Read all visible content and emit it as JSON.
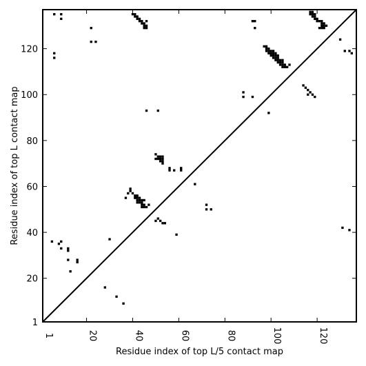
{
  "chart_data": {
    "type": "scatter",
    "title": "",
    "xlabel": "Residue index of top L/5 contact map",
    "ylabel": "Residue index of top L contact map",
    "xlim": [
      1,
      137
    ],
    "ylim": [
      1,
      137
    ],
    "xticks": [
      1,
      20,
      40,
      60,
      80,
      100,
      120
    ],
    "yticks": [
      1,
      20,
      40,
      60,
      80,
      100,
      120
    ],
    "xtick_labels": [
      "1",
      "20",
      "40",
      "60",
      "80",
      "100",
      "120"
    ],
    "ytick_labels": [
      "1",
      "20",
      "40",
      "60",
      "80",
      "100",
      "120"
    ],
    "grid": false,
    "marker_color": "#000000",
    "diagonal": {
      "from": [
        1,
        1
      ],
      "to": [
        137,
        137
      ]
    },
    "points": [
      [
        6,
        135
      ],
      [
        9,
        135
      ],
      [
        9,
        133
      ],
      [
        22,
        129
      ],
      [
        22,
        123
      ],
      [
        24,
        123
      ],
      [
        6,
        118
      ],
      [
        6,
        116
      ],
      [
        40,
        135
      ],
      [
        41,
        135
      ],
      [
        41,
        134
      ],
      [
        42,
        134
      ],
      [
        42,
        133
      ],
      [
        43,
        133
      ],
      [
        43,
        132
      ],
      [
        44,
        132
      ],
      [
        44,
        131
      ],
      [
        45,
        131
      ],
      [
        45,
        130
      ],
      [
        45,
        129
      ],
      [
        46,
        129
      ],
      [
        46,
        130
      ],
      [
        46,
        132
      ],
      [
        92,
        132
      ],
      [
        93,
        132
      ],
      [
        93,
        129
      ],
      [
        117,
        136
      ],
      [
        118,
        136
      ],
      [
        117,
        135
      ],
      [
        118,
        135
      ],
      [
        119,
        135
      ],
      [
        118,
        134
      ],
      [
        119,
        134
      ],
      [
        119,
        133
      ],
      [
        120,
        133
      ],
      [
        120,
        132
      ],
      [
        121,
        132
      ],
      [
        122,
        132
      ],
      [
        122,
        131
      ],
      [
        123,
        131
      ],
      [
        122,
        130
      ],
      [
        123,
        130
      ],
      [
        124,
        130
      ],
      [
        121,
        129
      ],
      [
        122,
        129
      ],
      [
        123,
        129
      ],
      [
        130,
        124
      ],
      [
        132,
        119
      ],
      [
        134,
        119
      ],
      [
        135,
        118
      ],
      [
        97,
        121
      ],
      [
        98,
        121
      ],
      [
        98,
        120
      ],
      [
        99,
        120
      ],
      [
        98,
        119
      ],
      [
        99,
        119
      ],
      [
        100,
        119
      ],
      [
        101,
        119
      ],
      [
        99,
        118
      ],
      [
        100,
        118
      ],
      [
        101,
        118
      ],
      [
        102,
        118
      ],
      [
        100,
        117
      ],
      [
        101,
        117
      ],
      [
        102,
        117
      ],
      [
        103,
        117
      ],
      [
        101,
        116
      ],
      [
        102,
        116
      ],
      [
        103,
        116
      ],
      [
        102,
        115
      ],
      [
        103,
        115
      ],
      [
        104,
        115
      ],
      [
        103,
        114
      ],
      [
        104,
        114
      ],
      [
        105,
        115
      ],
      [
        105,
        114
      ],
      [
        104,
        113
      ],
      [
        105,
        113
      ],
      [
        106,
        113
      ],
      [
        105,
        112
      ],
      [
        106,
        112
      ],
      [
        107,
        112
      ],
      [
        108,
        113
      ],
      [
        114,
        104
      ],
      [
        115,
        103
      ],
      [
        116,
        102
      ],
      [
        117,
        101
      ],
      [
        116,
        100
      ],
      [
        118,
        100
      ],
      [
        119,
        99
      ],
      [
        88,
        101
      ],
      [
        88,
        99
      ],
      [
        92,
        99
      ],
      [
        99,
        92
      ],
      [
        46,
        93
      ],
      [
        51,
        93
      ],
      [
        5,
        36
      ],
      [
        8,
        35
      ],
      [
        9,
        36
      ],
      [
        9,
        33
      ],
      [
        12,
        33
      ],
      [
        12,
        32
      ],
      [
        12,
        28
      ],
      [
        16,
        28
      ],
      [
        16,
        27
      ],
      [
        13,
        23
      ],
      [
        30,
        37
      ],
      [
        28,
        16
      ],
      [
        33,
        12
      ],
      [
        36,
        9
      ],
      [
        38,
        57
      ],
      [
        39,
        58
      ],
      [
        39,
        59
      ],
      [
        40,
        57
      ],
      [
        41,
        56
      ],
      [
        42,
        56
      ],
      [
        41,
        55
      ],
      [
        42,
        55
      ],
      [
        43,
        55
      ],
      [
        42,
        54
      ],
      [
        43,
        54
      ],
      [
        44,
        54
      ],
      [
        45,
        54
      ],
      [
        42,
        53
      ],
      [
        43,
        53
      ],
      [
        44,
        53
      ],
      [
        44,
        52
      ],
      [
        45,
        52
      ],
      [
        44,
        51
      ],
      [
        45,
        51
      ],
      [
        46,
        51
      ],
      [
        47,
        52
      ],
      [
        37,
        55
      ],
      [
        50,
        74
      ],
      [
        51,
        73
      ],
      [
        52,
        73
      ],
      [
        53,
        73
      ],
      [
        50,
        72
      ],
      [
        51,
        72
      ],
      [
        52,
        72
      ],
      [
        53,
        72
      ],
      [
        52,
        71
      ],
      [
        53,
        71
      ],
      [
        53,
        70
      ],
      [
        56,
        68
      ],
      [
        56,
        67
      ],
      [
        58,
        67
      ],
      [
        61,
        68
      ],
      [
        61,
        67
      ],
      [
        67,
        61
      ],
      [
        51,
        46
      ],
      [
        52,
        45
      ],
      [
        53,
        44
      ],
      [
        54,
        44
      ],
      [
        50,
        45
      ],
      [
        59,
        39
      ],
      [
        72,
        52
      ],
      [
        72,
        50
      ],
      [
        74,
        50
      ],
      [
        131,
        42
      ],
      [
        134,
        41
      ]
    ]
  }
}
